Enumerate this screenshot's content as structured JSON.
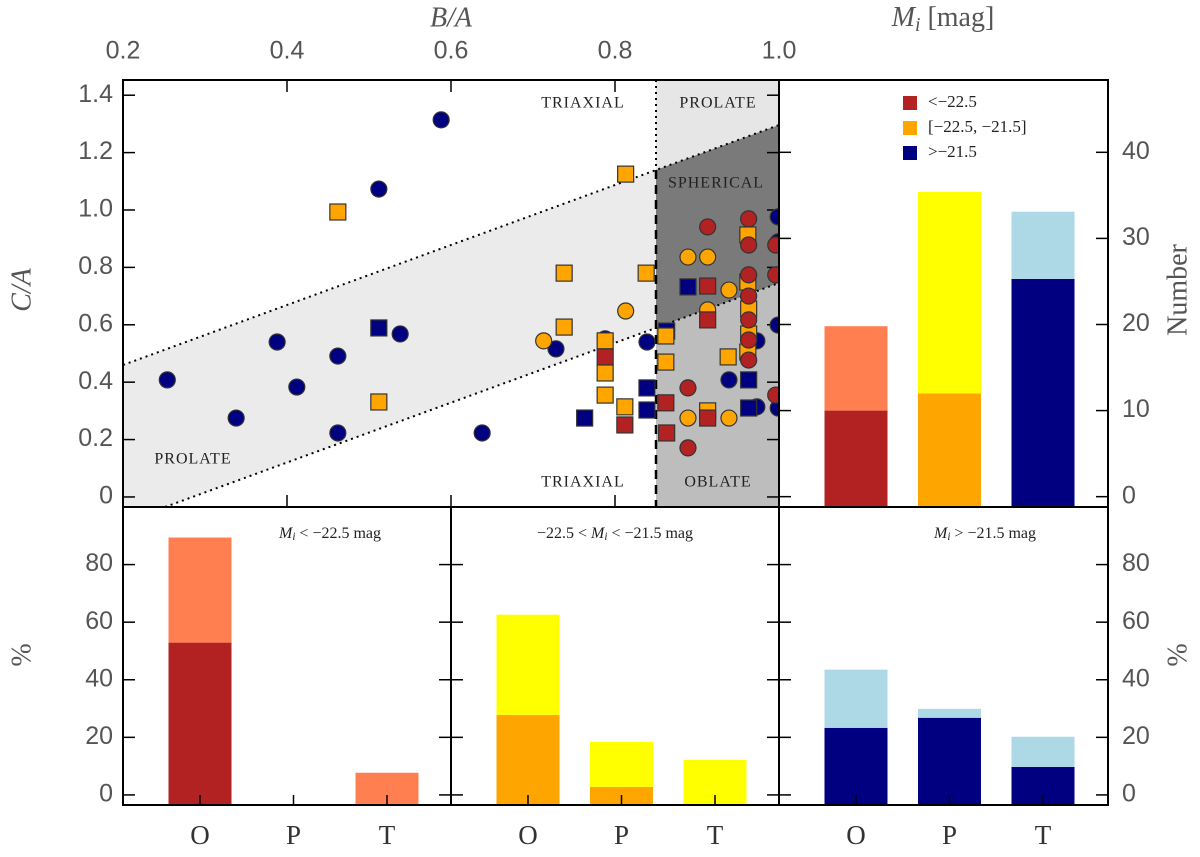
{
  "chart_data": [
    {
      "type": "scatter",
      "xlabel": "B/A",
      "ylabel": "C/A",
      "xlim": [
        0.2,
        1.0
      ],
      "ylim": [
        -0.035,
        1.453
      ],
      "xticks": [
        0.2,
        0.4,
        0.6,
        0.8,
        {
          "value": 1,
          "label": "1.0"
        }
      ],
      "yticks": [
        0,
        0.2,
        0.4,
        0.6,
        0.8,
        {
          "value": 1,
          "label": "1.0"
        },
        1.2,
        1.4
      ],
      "annotations": [
        "TRIAXIAL",
        "PROLATE",
        "SPHERICAL",
        "PROLATE",
        "TRIAXIAL",
        "OBLATE"
      ],
      "series": [
        {
          "color": "#000080",
          "marker": "circle",
          "x": [
            0.254,
            0.338,
            0.388,
            0.412,
            0.462,
            0.462,
            0.512,
            0.538,
            0.588,
            0.638,
            0.728,
            0.788,
            0.839,
            0.939,
            0.973,
            0.973,
            0.999,
            0.999,
            0.999,
            0.999,
            0.999
          ],
          "y": [
            0.408,
            0.275,
            0.54,
            0.383,
            0.491,
            0.223,
            1.073,
            0.568,
            1.314,
            0.223,
            0.516,
            0.551,
            0.54,
            0.408,
            0.544,
            0.314,
            0.976,
            0.889,
            0.774,
            0.599,
            0.31
          ]
        },
        {
          "color": "#000080",
          "marker": "square",
          "x": [
            0.512,
            0.763,
            0.839,
            0.839,
            0.863,
            0.889,
            0.963,
            0.963
          ],
          "y": [
            0.589,
            0.275,
            0.38,
            0.303,
            0.578,
            0.732,
            0.408,
            0.31
          ]
        },
        {
          "color": "#ffa500",
          "marker": "square",
          "x": [
            0.462,
            0.512,
            0.738,
            0.738,
            0.788,
            0.788,
            0.788,
            0.812,
            0.813,
            0.838,
            0.862,
            0.862,
            0.913,
            0.938,
            0.962,
            0.962,
            0.963,
            0.963,
            0.962
          ],
          "y": [
            0.993,
            0.331,
            0.78,
            0.592,
            0.544,
            0.432,
            0.355,
            0.314,
            1.125,
            0.78,
            0.561,
            0.47,
            0.3,
            0.488,
            0.913,
            0.749,
            0.655,
            0.568,
            0.505
          ]
        },
        {
          "color": "#ffa500",
          "marker": "circle",
          "x": [
            0.713,
            0.813,
            0.889,
            0.913,
            0.889,
            0.913,
            0.939,
            0.939
          ],
          "y": [
            0.544,
            0.648,
            0.836,
            0.836,
            0.275,
            0.652,
            0.275,
            0.721
          ]
        },
        {
          "color": "#b22222",
          "marker": "square",
          "x": [
            0.788,
            0.812,
            0.862,
            0.863,
            0.913,
            0.913,
            0.913
          ],
          "y": [
            0.488,
            0.251,
            0.328,
            0.223,
            0.735,
            0.617,
            0.275
          ]
        },
        {
          "color": "#b22222",
          "marker": "circle",
          "x": [
            0.913,
            0.889,
            0.889,
            0.963,
            0.963,
            0.963,
            0.963,
            0.963,
            0.963,
            0.963,
            0.996,
            0.996,
            0.996
          ],
          "y": [
            0.941,
            0.38,
            0.171,
            0.969,
            0.878,
            0.774,
            0.7,
            0.617,
            0.547,
            0.477,
            0.355,
            0.878,
            0.774
          ]
        }
      ]
    },
    {
      "type": "stacked_bar",
      "xlabel": {
        "main": "M",
        "sub": "i",
        "rest": " [mag]"
      },
      "ylabel": "Number",
      "ylim": [
        -1.2,
        48.4
      ],
      "yticks": [
        0,
        10,
        20,
        30,
        40
      ],
      "legend": {
        "labels": [
          "<−22.5",
          "[−22.5, −21.5]",
          ">−21.5"
        ],
        "colors": [
          "#b22222",
          "#ffa500",
          "#000080"
        ]
      },
      "series": [
        {
          "colors": [
            "#b22222",
            "#ffa500",
            "#000080"
          ],
          "values": [
            10,
            12,
            25.3
          ]
        },
        {
          "colors": [
            "#ff7f50",
            "#ffff00",
            "#add8e6"
          ],
          "values": [
            9.8,
            23.4,
            7.8
          ]
        }
      ]
    },
    {
      "type": "stacked_bar",
      "ylabel": "%",
      "ylim": [
        -3.5,
        100
      ],
      "yticks": [
        0,
        20,
        40,
        60,
        80
      ],
      "categories": [
        "O",
        "P",
        "T"
      ],
      "label": {
        "main": "M",
        "sub": "i",
        "rest": " < −22.5 mag"
      },
      "series": [
        {
          "color": "#b22222",
          "values": [
            52.9,
            0,
            0
          ]
        },
        {
          "color": "#ff7f50",
          "values": [
            36.5,
            0,
            7.7
          ]
        }
      ]
    },
    {
      "type": "stacked_bar",
      "ylim": [
        -3.5,
        100
      ],
      "yticks": [
        0,
        20,
        40,
        60,
        80
      ],
      "categories": [
        "O",
        "P",
        "T"
      ],
      "label": {
        "pre": "−22.5 < ",
        "main": "M",
        "sub": "i",
        "rest": " < −21.5 mag"
      },
      "series": [
        {
          "color": "#ffa500",
          "values": [
            27.8,
            2.8,
            0
          ]
        },
        {
          "color": "#ffff00",
          "values": [
            34.8,
            15.6,
            12.2
          ]
        }
      ]
    },
    {
      "type": "stacked_bar",
      "ylabel": "%",
      "ylim": [
        -3.5,
        100
      ],
      "yticks": [
        0,
        20,
        40,
        60,
        80
      ],
      "categories": [
        "O",
        "P",
        "T"
      ],
      "label": {
        "main": "M",
        "sub": "i",
        "rest": " > −21.5 mag"
      },
      "series": [
        {
          "color": "#000080",
          "values": [
            23.3,
            26.8,
            9.7
          ]
        },
        {
          "color": "#add8e6",
          "values": [
            20.2,
            3.1,
            10.5
          ]
        }
      ]
    }
  ]
}
